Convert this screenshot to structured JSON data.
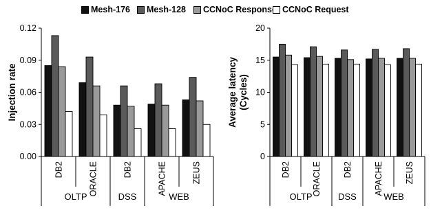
{
  "colors": {
    "mesh176": "#111111",
    "mesh128": "#5a5a5a",
    "ccnoc_response": "#9a9a9a",
    "ccnoc_request": "#ffffff"
  },
  "legend": [
    {
      "name": "Mesh-176",
      "color": "#111111"
    },
    {
      "name": "Mesh-128",
      "color": "#5a5a5a"
    },
    {
      "name": "CCNoC Response",
      "color": "#9a9a9a"
    },
    {
      "name": "CCNoC Request",
      "color": "#ffffff"
    }
  ],
  "chart_data": [
    {
      "type": "bar",
      "title": "",
      "ylabel": "Injection rate",
      "xlabel": "",
      "ylim": [
        0,
        0.12
      ],
      "yticks": [
        "0.00",
        "0.03",
        "0.06",
        "0.09",
        "0.12"
      ],
      "grid": false,
      "legend_position": "top",
      "categories": [
        "DB2",
        "ORACLE",
        "DB2",
        "APACHE",
        "ZEUS"
      ],
      "groups": [
        {
          "label": "OLTP",
          "span": [
            0,
            1
          ]
        },
        {
          "label": "DSS",
          "span": [
            2,
            2
          ]
        },
        {
          "label": "WEB",
          "span": [
            3,
            4
          ]
        }
      ],
      "series": [
        {
          "name": "Mesh-176",
          "values": [
            0.085,
            0.069,
            0.048,
            0.049,
            0.053
          ]
        },
        {
          "name": "Mesh-128",
          "values": [
            0.113,
            0.093,
            0.066,
            0.068,
            0.074
          ]
        },
        {
          "name": "CCNoC Response",
          "values": [
            0.084,
            0.066,
            0.047,
            0.048,
            0.052
          ]
        },
        {
          "name": "CCNoC Request",
          "values": [
            0.042,
            0.039,
            0.026,
            0.026,
            0.03
          ]
        }
      ]
    },
    {
      "type": "bar",
      "title": "",
      "ylabel": "Average latency (Cycles)",
      "ylabel_lines": [
        "Average latency",
        "(Cycles)"
      ],
      "xlabel": "",
      "ylim": [
        0,
        20
      ],
      "yticks": [
        "0",
        "5",
        "10",
        "15",
        "20"
      ],
      "grid": false,
      "legend_position": "top",
      "categories": [
        "DB2",
        "ORACLE",
        "DB2",
        "APACHE",
        "ZEUS"
      ],
      "groups": [
        {
          "label": "OLTP",
          "span": [
            0,
            1
          ]
        },
        {
          "label": "DSS",
          "span": [
            2,
            2
          ]
        },
        {
          "label": "WEB",
          "span": [
            3,
            4
          ]
        }
      ],
      "series": [
        {
          "name": "Mesh-176",
          "values": [
            15.5,
            15.4,
            15.3,
            15.2,
            15.3
          ]
        },
        {
          "name": "Mesh-128",
          "values": [
            17.5,
            17.1,
            16.6,
            16.7,
            16.8
          ]
        },
        {
          "name": "CCNoC Response",
          "values": [
            15.8,
            15.6,
            15.1,
            15.3,
            15.3
          ]
        },
        {
          "name": "CCNoC Request",
          "values": [
            14.3,
            14.4,
            14.4,
            14.3,
            14.4
          ]
        }
      ]
    }
  ]
}
